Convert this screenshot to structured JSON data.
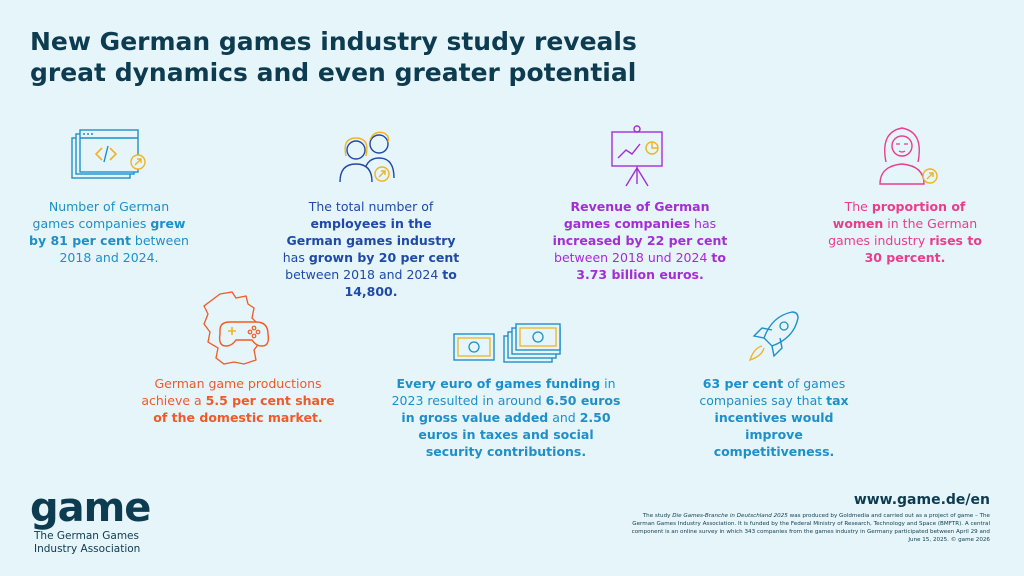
{
  "header": {
    "title_line1": "New German games industry study reveals",
    "title_line2": "great dynamics and even greater potential"
  },
  "colors": {
    "navy": "#0d3b4f",
    "blue": "#1e8fc8",
    "navy_blue": "#1f4aa8",
    "purple": "#a32ed6",
    "pink": "#e83e8c",
    "orange": "#f05a28",
    "yellow": "#f0b323"
  },
  "facts": {
    "companies": {
      "p1": "Number of German games companies ",
      "b1": "grew by 81 per cent",
      "p2": " between 2018 and 2024."
    },
    "employees": {
      "p1": "The total number of ",
      "b1": "employees in the German games industry",
      "p2": " has ",
      "b2": "grown by 20 per cent",
      "p3": " between 2018 and 2024 ",
      "b3": "to 14,800."
    },
    "revenue": {
      "b1": "Revenue of German games companies",
      "p1": " has ",
      "b2": "increased by 22 per cent",
      "p2": " between 2018 und 2024 ",
      "b3": "to 3.73 billion euros."
    },
    "women": {
      "p1": "The ",
      "b1": "proportion of women",
      "p2": " in the German games industry ",
      "b2": "rises to 30 percent."
    },
    "market": {
      "p1": "German game productions achieve a ",
      "b1": "5.5 per cent share of the domestic market."
    },
    "funding": {
      "b1": "Every euro of games funding",
      "p1": " in 2023 resulted in around ",
      "b2": "6.50 euros in gross value added",
      "p2": " and ",
      "b3": "2.50 euros in taxes and social security contributions."
    },
    "tax": {
      "b1": "63 per cent",
      "p1": " of games companies say that ",
      "b2": "tax incentives would improve competitiveness."
    }
  },
  "logo": {
    "word": "game",
    "sub_line1": "The German Games",
    "sub_line2": "Industry Association"
  },
  "footer": {
    "url": "www.game.de/en",
    "note_p1": "The study ",
    "note_title": "Die Games-Branche in Deutschland 2025",
    "note_p2": " was produced by Goldmedia and carried out as a project of game – The German Games Industry Association. It is funded by the Federal Ministry of Research, Technology and Space (BMFTR). A central component is an online survey in which 343 companies from the games industry in Germany participated between April 29 and June 15, 2025. © game 2026"
  }
}
